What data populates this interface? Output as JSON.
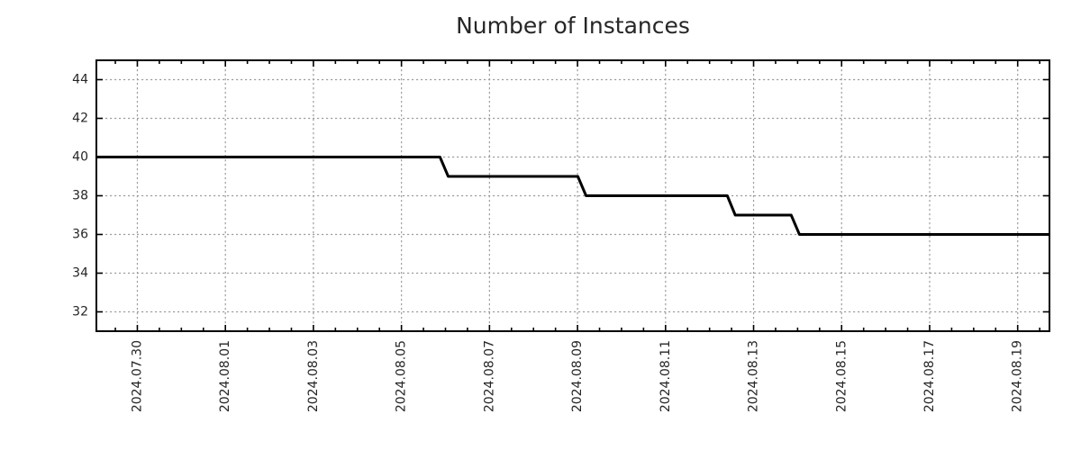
{
  "chart_data": {
    "type": "line",
    "subtype": "step",
    "title": "Number of Instances",
    "legend": "none",
    "grid": {
      "visible": true,
      "style": "dotted"
    },
    "series": [
      {
        "name": "instances",
        "color": "#000000",
        "points": [
          [
            "2024-07-29 01:40",
            40
          ],
          [
            "2024-08-05 21:00",
            40
          ],
          [
            "2024-08-06 01:30",
            39
          ],
          [
            "2024-08-09 00:10",
            39
          ],
          [
            "2024-08-09 04:40",
            38
          ],
          [
            "2024-08-12 09:40",
            38
          ],
          [
            "2024-08-12 14:00",
            37
          ],
          [
            "2024-08-13 20:30",
            37
          ],
          [
            "2024-08-14 01:00",
            36
          ],
          [
            "2024-08-19 17:20",
            36
          ]
        ]
      }
    ],
    "x_axis": {
      "start": "2024-07-29 01:40",
      "end": "2024-08-19 17:20",
      "major_tick_labels": [
        "2024.07.30",
        "2024.08.01",
        "2024.08.03",
        "2024.08.05",
        "2024.08.07",
        "2024.08.09",
        "2024.08.11",
        "2024.08.13",
        "2024.08.15",
        "2024.08.17",
        "2024.08.19"
      ],
      "minor_tick_interval_days": 0.5,
      "label_rotation_deg": -90
    },
    "y_axis": {
      "min": 31,
      "max": 45,
      "tick_labels": [
        "32",
        "34",
        "36",
        "38",
        "40",
        "42",
        "44"
      ],
      "tick_values": [
        32,
        34,
        36,
        38,
        40,
        42,
        44
      ]
    }
  },
  "colors": {
    "background": "#ffffff",
    "line": "#000000",
    "axis": "#000000",
    "grid": "#9e9e9e",
    "text": "#262626"
  }
}
